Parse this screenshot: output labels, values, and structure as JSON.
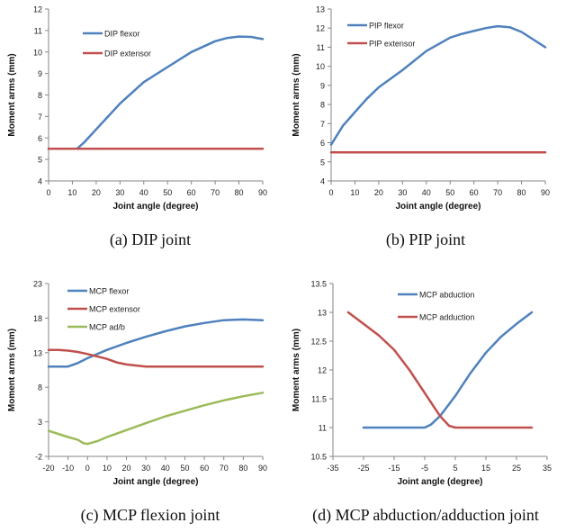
{
  "chart_data": [
    {
      "id": "a",
      "type": "line",
      "caption": "(a)  DIP joint",
      "xlabel": "Joint angle (degree)",
      "ylabel": "Moment arms (mm)",
      "xlim": [
        0,
        90
      ],
      "ylim": [
        4,
        12
      ],
      "xticks": [
        0,
        10,
        20,
        30,
        40,
        50,
        60,
        70,
        80,
        90
      ],
      "yticks": [
        4,
        5,
        6,
        7,
        8,
        9,
        10,
        11,
        12
      ],
      "legend_position": "top-left",
      "series": [
        {
          "name": "DIP flexor",
          "color": "#4f81bd",
          "x": [
            0,
            5,
            10,
            12,
            15,
            20,
            25,
            30,
            40,
            50,
            60,
            70,
            75,
            80,
            85,
            90
          ],
          "y": [
            5.5,
            5.5,
            5.5,
            5.5,
            5.8,
            6.4,
            7.0,
            7.6,
            8.6,
            9.3,
            10.0,
            10.5,
            10.65,
            10.72,
            10.7,
            10.6
          ]
        },
        {
          "name": "DIP extensor",
          "color": "#c0504d",
          "x": [
            0,
            90
          ],
          "y": [
            5.5,
            5.5
          ]
        }
      ]
    },
    {
      "id": "b",
      "type": "line",
      "caption": "(b)  PIP joint",
      "xlabel": "Joint angle (degree)",
      "ylabel": "Moment arms (mm)",
      "xlim": [
        0,
        90
      ],
      "ylim": [
        4,
        13
      ],
      "xticks": [
        0,
        10,
        20,
        30,
        40,
        50,
        60,
        70,
        80,
        90
      ],
      "yticks": [
        4,
        5,
        6,
        7,
        8,
        9,
        10,
        11,
        12,
        13
      ],
      "legend_position": "top-left",
      "series": [
        {
          "name": "PIP flexor",
          "color": "#4f81bd",
          "x": [
            0,
            5,
            10,
            15,
            20,
            30,
            40,
            50,
            55,
            60,
            65,
            70,
            75,
            80,
            85,
            90
          ],
          "y": [
            5.9,
            6.9,
            7.6,
            8.3,
            8.9,
            9.8,
            10.8,
            11.5,
            11.7,
            11.85,
            12.0,
            12.1,
            12.05,
            11.8,
            11.4,
            11.0
          ]
        },
        {
          "name": "PIP extensor",
          "color": "#c0504d",
          "x": [
            0,
            90
          ],
          "y": [
            5.5,
            5.5
          ]
        }
      ]
    },
    {
      "id": "c",
      "type": "line",
      "caption": "(c)  MCP flexion joint",
      "xlabel": "Joint angle (degree)",
      "ylabel": "Moment arms (mm)",
      "xlim": [
        -20,
        90
      ],
      "ylim": [
        -2,
        23
      ],
      "xticks": [
        -20,
        -10,
        0,
        10,
        20,
        30,
        40,
        50,
        60,
        70,
        80,
        90
      ],
      "yticks": [
        -2,
        3,
        8,
        13,
        18,
        23
      ],
      "legend_position": "top-left",
      "series": [
        {
          "name": "MCP flexor",
          "color": "#4f81bd",
          "x": [
            -20,
            -15,
            -10,
            -5,
            0,
            10,
            20,
            30,
            40,
            50,
            60,
            70,
            80,
            90
          ],
          "y": [
            11.0,
            11.0,
            11.0,
            11.5,
            12.2,
            13.4,
            14.4,
            15.3,
            16.1,
            16.8,
            17.3,
            17.7,
            17.8,
            17.7
          ]
        },
        {
          "name": "MCP extensor",
          "color": "#c0504d",
          "x": [
            -20,
            -15,
            -10,
            -5,
            0,
            10,
            15,
            20,
            30,
            40,
            50,
            60,
            70,
            80,
            90
          ],
          "y": [
            13.4,
            13.4,
            13.3,
            13.1,
            12.8,
            12.1,
            11.6,
            11.3,
            11.0,
            11.0,
            11.0,
            11.0,
            11.0,
            11.0,
            11.0
          ]
        },
        {
          "name": "MCP ad/b",
          "color": "#9bbb59",
          "x": [
            -20,
            -10,
            -5,
            -2,
            0,
            5,
            10,
            20,
            30,
            40,
            50,
            60,
            70,
            80,
            90
          ],
          "y": [
            1.7,
            0.8,
            0.4,
            -0.1,
            -0.2,
            0.2,
            0.8,
            1.8,
            2.8,
            3.8,
            4.6,
            5.4,
            6.1,
            6.7,
            7.2
          ]
        }
      ]
    },
    {
      "id": "d",
      "type": "line",
      "caption": "(d)  MCP abduction/adduction joint",
      "xlabel": "Joint angle (degree)",
      "ylabel": "Moment arms (mm)",
      "xlim": [
        -35,
        35
      ],
      "ylim": [
        10.5,
        13.5
      ],
      "xticks": [
        -35,
        -25,
        -15,
        -5,
        5,
        15,
        25,
        35
      ],
      "yticks": [
        10.5,
        11,
        11.5,
        12,
        12.5,
        13,
        13.5
      ],
      "ytick_labels": [
        "10.5",
        "11",
        "11.5",
        "12",
        "12.5",
        "13",
        "13.5"
      ],
      "legend_position": "top-center",
      "series": [
        {
          "name": "MCP abduction",
          "color": "#4f81bd",
          "x": [
            -25,
            -20,
            -15,
            -10,
            -5,
            -3,
            0,
            5,
            10,
            15,
            20,
            25,
            30
          ],
          "y": [
            11.0,
            11.0,
            11.0,
            11.0,
            11.0,
            11.05,
            11.2,
            11.55,
            11.95,
            12.3,
            12.58,
            12.8,
            13.0
          ]
        },
        {
          "name": "MCP adduction",
          "color": "#c0504d",
          "x": [
            -30,
            -25,
            -20,
            -15,
            -10,
            -5,
            0,
            3,
            5,
            8,
            10,
            15,
            20,
            25,
            30
          ],
          "y": [
            13.0,
            12.8,
            12.6,
            12.35,
            12.0,
            11.6,
            11.2,
            11.03,
            11.0,
            11.0,
            11.0,
            11.0,
            11.0,
            11.0,
            11.0
          ]
        }
      ]
    }
  ]
}
